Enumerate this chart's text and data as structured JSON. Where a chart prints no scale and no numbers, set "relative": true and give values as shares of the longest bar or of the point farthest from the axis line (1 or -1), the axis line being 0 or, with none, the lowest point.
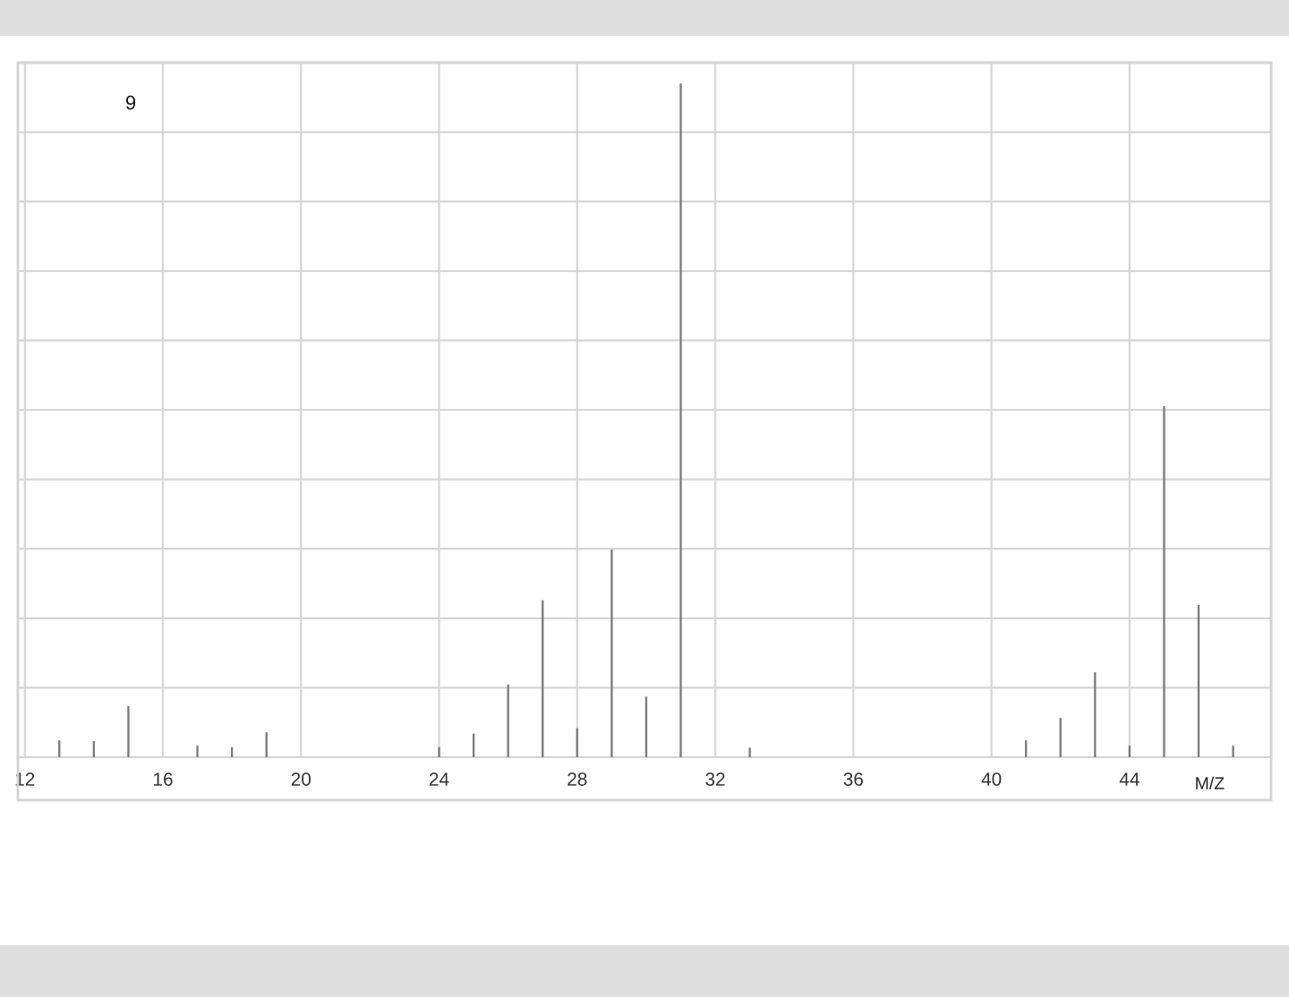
{
  "chart_data": {
    "type": "bar",
    "x": [
      13,
      14,
      15,
      17,
      18,
      19,
      24,
      25,
      26,
      27,
      28,
      29,
      30,
      31,
      33,
      41,
      42,
      43,
      44,
      45,
      46,
      47
    ],
    "values": [
      0.025,
      0.024,
      0.076,
      0.017,
      0.015,
      0.037,
      0.015,
      0.035,
      0.108,
      0.233,
      0.043,
      0.308,
      0.09,
      1,
      0.014,
      0.025,
      0.058,
      0.126,
      0.017,
      0.521,
      0.226,
      0.017
    ],
    "relative": true,
    "color": "#7a7a7a",
    "xlim": [
      11.8,
      48.1
    ],
    "xticks": [
      12,
      16,
      20,
      24,
      28,
      32,
      36,
      40,
      44
    ],
    "xlabel": "M/Z",
    "annotations": [
      "9"
    ],
    "grid": true
  }
}
